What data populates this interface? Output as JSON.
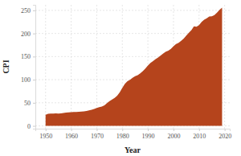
{
  "chart_data": {
    "type": "area",
    "x_label": "Year",
    "y_label": "CPI",
    "color": "#b5441c",
    "grid": true,
    "x": [
      1950,
      1951,
      1952,
      1953,
      1954,
      1955,
      1956,
      1957,
      1958,
      1959,
      1960,
      1961,
      1962,
      1963,
      1964,
      1965,
      1966,
      1967,
      1968,
      1969,
      1970,
      1971,
      1972,
      1973,
      1974,
      1975,
      1976,
      1977,
      1978,
      1979,
      1980,
      1981,
      1982,
      1983,
      1984,
      1985,
      1986,
      1987,
      1988,
      1989,
      1990,
      1991,
      1992,
      1993,
      1994,
      1995,
      1996,
      1997,
      1998,
      1999,
      2000,
      2001,
      2002,
      2003,
      2004,
      2005,
      2006,
      2007,
      2008,
      2009,
      2010,
      2011,
      2012,
      2013,
      2014,
      2015,
      2016,
      2017,
      2018,
      2019
    ],
    "values": [
      24.1,
      26.0,
      26.5,
      26.7,
      26.9,
      26.8,
      27.2,
      28.1,
      28.9,
      29.1,
      29.6,
      29.9,
      30.2,
      30.6,
      31.0,
      31.5,
      32.4,
      33.4,
      34.8,
      36.7,
      38.8,
      40.5,
      41.8,
      44.4,
      49.3,
      53.8,
      56.9,
      60.6,
      65.2,
      72.6,
      82.4,
      90.9,
      96.5,
      99.6,
      103.9,
      107.6,
      109.6,
      113.6,
      118.3,
      124.0,
      130.7,
      136.2,
      140.3,
      144.5,
      148.2,
      152.4,
      156.9,
      160.5,
      163.0,
      166.6,
      172.2,
      177.1,
      179.9,
      184.0,
      188.9,
      195.3,
      201.6,
      207.3,
      215.3,
      214.5,
      218.1,
      224.9,
      229.6,
      233.0,
      236.7,
      237.0,
      240.0,
      245.1,
      251.1,
      255.7
    ],
    "xlim": [
      1946,
      2022
    ],
    "xticks": [
      1950,
      1960,
      1970,
      1980,
      1990,
      2000,
      2010,
      2020
    ],
    "ylim": [
      -6,
      262
    ],
    "yticks": [
      0,
      50,
      100,
      150,
      200,
      250
    ]
  }
}
